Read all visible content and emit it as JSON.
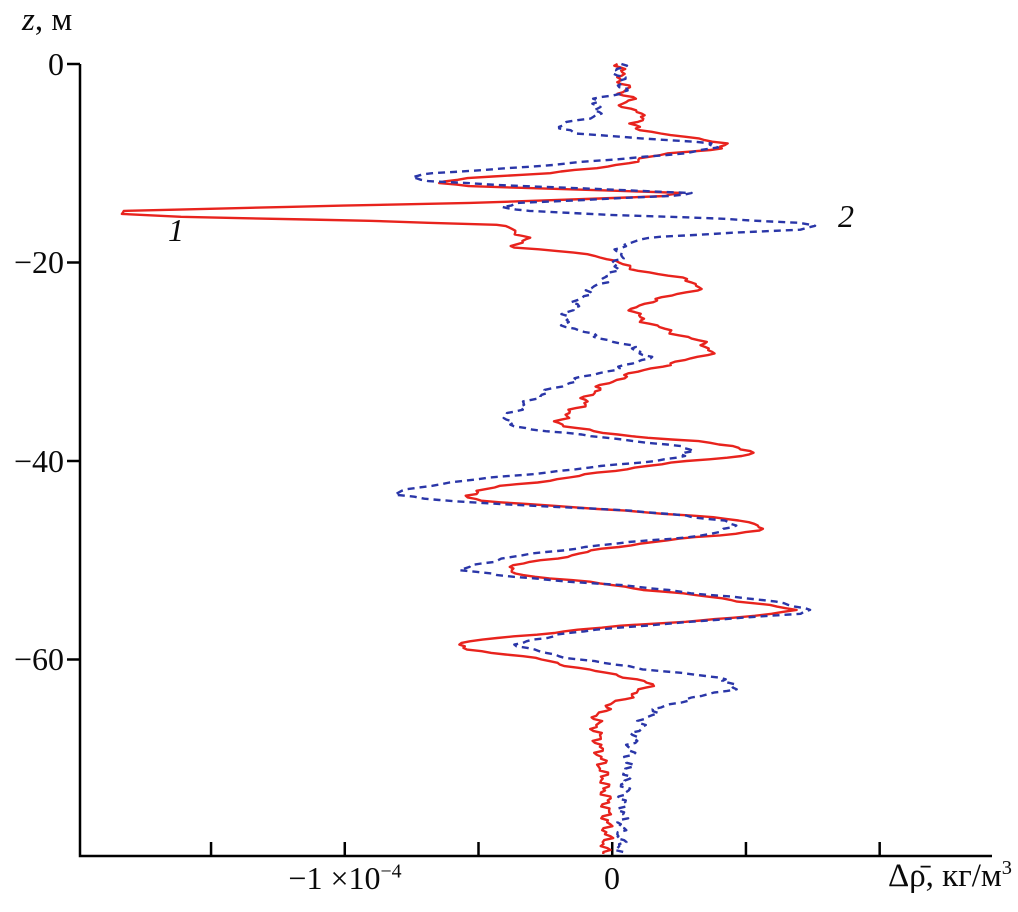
{
  "figure": {
    "z_axis": {
      "symbol": "z",
      "unit_suffix": ", м"
    },
    "x_axis": {
      "label_base": "Δρ̄, кг/м",
      "label_exp": "3"
    },
    "x_tick_neg": {
      "base": "−1 ×10",
      "exp": "−4"
    },
    "x_tick_zero": "0"
  },
  "chart_data": {
    "type": "line",
    "title": "",
    "xlabel": "Δρ̄, кг/м³",
    "ylabel": "z, м",
    "values_unit": "×10⁻⁴ кг/м³",
    "x_scale": 0.0001,
    "xlim_e4": [
      -1.99,
      1.42
    ],
    "ylim": [
      -79.8,
      0
    ],
    "x_ticks_e4": [
      -1.5,
      -1,
      -0.5,
      0,
      0.5,
      1
    ],
    "x_labeled_ticks": [
      {
        "value_e4": -1,
        "label": "−1 ×10⁻⁴"
      },
      {
        "value_e4": 0,
        "label": "0"
      }
    ],
    "y_ticks": [
      0,
      -20,
      -40,
      -60
    ],
    "y_tick_labels": [
      "0",
      "−20",
      "−40",
      "−60"
    ],
    "grid": false,
    "legend_position": "inline-annotations",
    "series": [
      {
        "name": "1",
        "color": "#e8231d",
        "style": "solid",
        "points": [
          [
            0,
            0.02
          ],
          [
            -0.5,
            0.05
          ],
          [
            -1,
            0.02
          ],
          [
            -1.5,
            0.04
          ],
          [
            -2,
            0.03
          ],
          [
            -2.5,
            0.06
          ],
          [
            -3,
            0.04
          ],
          [
            -3.5,
            0.07
          ],
          [
            -4,
            0.04
          ],
          [
            -4.5,
            0.06
          ],
          [
            -5,
            0.1
          ],
          [
            -5.5,
            0.14
          ],
          [
            -6,
            0.06
          ],
          [
            -6.5,
            0.1
          ],
          [
            -7,
            0.18
          ],
          [
            -7.5,
            0.3
          ],
          [
            -8,
            0.44
          ],
          [
            -8.5,
            0.4
          ],
          [
            -9,
            0.22
          ],
          [
            -9.5,
            0.12
          ],
          [
            -10,
            0.05
          ],
          [
            -10.5,
            -0.05
          ],
          [
            -11,
            -0.25
          ],
          [
            -11.5,
            -0.55
          ],
          [
            -12,
            -0.63
          ],
          [
            -12.3,
            -0.55
          ],
          [
            -12.6,
            -0.2
          ],
          [
            -13,
            0.28
          ],
          [
            -13.3,
            0.2
          ],
          [
            -13.6,
            -0.1
          ],
          [
            -14,
            -0.55
          ],
          [
            -14.4,
            -1.2
          ],
          [
            -14.8,
            -1.82
          ],
          [
            -15.1,
            -1.86
          ],
          [
            -15.4,
            -1.6
          ],
          [
            -15.8,
            -0.9
          ],
          [
            -16.2,
            -0.45
          ],
          [
            -16.6,
            -0.37
          ],
          [
            -17,
            -0.35
          ],
          [
            -17.5,
            -0.33
          ],
          [
            -18,
            -0.34
          ],
          [
            -18.5,
            -0.36
          ],
          [
            -19,
            -0.15
          ],
          [
            -19.5,
            -0.02
          ],
          [
            -20,
            0.02
          ],
          [
            -20.5,
            0.06
          ],
          [
            -21,
            0.14
          ],
          [
            -21.5,
            0.24
          ],
          [
            -22,
            0.31
          ],
          [
            -22.5,
            0.33
          ],
          [
            -23,
            0.28
          ],
          [
            -23.5,
            0.2
          ],
          [
            -24,
            0.13
          ],
          [
            -24.5,
            0.09
          ],
          [
            -25,
            0.08
          ],
          [
            -25.5,
            0.1
          ],
          [
            -26,
            0.13
          ],
          [
            -26.5,
            0.17
          ],
          [
            -27,
            0.22
          ],
          [
            -27.5,
            0.28
          ],
          [
            -28,
            0.33
          ],
          [
            -28.5,
            0.36
          ],
          [
            -29,
            0.37
          ],
          [
            -29.5,
            0.33
          ],
          [
            -30,
            0.25
          ],
          [
            -30.5,
            0.17
          ],
          [
            -31,
            0.1
          ],
          [
            -31.5,
            0.04
          ],
          [
            -32,
            0
          ],
          [
            -32.5,
            -0.04
          ],
          [
            -33,
            -0.07
          ],
          [
            -33.5,
            -0.09
          ],
          [
            -34,
            -0.1
          ],
          [
            -34.5,
            -0.12
          ],
          [
            -35,
            -0.15
          ],
          [
            -35.5,
            -0.18
          ],
          [
            -36,
            -0.2
          ],
          [
            -36.5,
            -0.17
          ],
          [
            -37,
            -0.08
          ],
          [
            -37.5,
            0.08
          ],
          [
            -38,
            0.3
          ],
          [
            -38.5,
            0.45
          ],
          [
            -39,
            0.53
          ],
          [
            -39.5,
            0.48
          ],
          [
            -40,
            0.3
          ],
          [
            -40.5,
            0.12
          ],
          [
            -41,
            0
          ],
          [
            -41.5,
            -0.12
          ],
          [
            -42,
            -0.25
          ],
          [
            -42.5,
            -0.4
          ],
          [
            -43,
            -0.5
          ],
          [
            -43.5,
            -0.55
          ],
          [
            -44,
            -0.48
          ],
          [
            -44.5,
            -0.25
          ],
          [
            -45,
            0.05
          ],
          [
            -45.5,
            0.3
          ],
          [
            -46,
            0.47
          ],
          [
            -46.5,
            0.57
          ],
          [
            -47,
            0.54
          ],
          [
            -47.5,
            0.4
          ],
          [
            -48,
            0.2
          ],
          [
            -48.5,
            0.05
          ],
          [
            -49,
            -0.06
          ],
          [
            -49.5,
            -0.15
          ],
          [
            -50,
            -0.26
          ],
          [
            -50.5,
            -0.36
          ],
          [
            -51,
            -0.4
          ],
          [
            -51.5,
            -0.33
          ],
          [
            -52,
            -0.16
          ],
          [
            -52.5,
            0
          ],
          [
            -53,
            0.14
          ],
          [
            -53.5,
            0.3
          ],
          [
            -54,
            0.45
          ],
          [
            -54.5,
            0.58
          ],
          [
            -55,
            0.67
          ],
          [
            -55.4,
            0.62
          ],
          [
            -55.8,
            0.45
          ],
          [
            -56.2,
            0.25
          ],
          [
            -56.6,
            0.05
          ],
          [
            -57,
            -0.12
          ],
          [
            -57.5,
            -0.3
          ],
          [
            -58,
            -0.48
          ],
          [
            -58.5,
            -0.59
          ],
          [
            -59,
            -0.54
          ],
          [
            -59.5,
            -0.38
          ],
          [
            -60,
            -0.27
          ],
          [
            -60.5,
            -0.18
          ],
          [
            -61,
            -0.1
          ],
          [
            -61.5,
            0
          ],
          [
            -62,
            0.1
          ],
          [
            -62.5,
            0.14
          ],
          [
            -63,
            0.12
          ],
          [
            -63.5,
            0.08
          ],
          [
            -64,
            0.04
          ],
          [
            -64.5,
            0
          ],
          [
            -65,
            -0.03
          ],
          [
            -65.5,
            -0.05
          ],
          [
            -66,
            -0.06
          ],
          [
            -67,
            -0.06
          ],
          [
            -68,
            -0.05
          ],
          [
            -69,
            -0.05
          ],
          [
            -70,
            -0.04
          ],
          [
            -71,
            -0.04
          ],
          [
            -72,
            -0.03
          ],
          [
            -73,
            -0.03
          ],
          [
            -74,
            -0.02
          ],
          [
            -75,
            -0.02
          ],
          [
            -76,
            -0.02
          ],
          [
            -77,
            -0.02
          ],
          [
            -78,
            -0.02
          ],
          [
            -79,
            -0.03
          ],
          [
            -79.6,
            -0.03
          ]
        ]
      },
      {
        "name": "2",
        "color": "#2a36a8",
        "style": "dashed",
        "points": [
          [
            0,
            0.03
          ],
          [
            -0.5,
            0.03
          ],
          [
            -1,
            0.02
          ],
          [
            -1.5,
            0.03
          ],
          [
            -2,
            0.04
          ],
          [
            -2.5,
            0.04
          ],
          [
            -3,
            0.03
          ],
          [
            -3.5,
            -0.05
          ],
          [
            -4,
            -0.08
          ],
          [
            -4.5,
            -0.04
          ],
          [
            -5,
            -0.05
          ],
          [
            -5.5,
            -0.1
          ],
          [
            -6,
            -0.17
          ],
          [
            -6.5,
            -0.21
          ],
          [
            -7,
            -0.12
          ],
          [
            -7.5,
            0.12
          ],
          [
            -8,
            0.36
          ],
          [
            -8.4,
            0.4
          ],
          [
            -8.8,
            0.32
          ],
          [
            -9.2,
            0.18
          ],
          [
            -9.6,
            0.02
          ],
          [
            -10,
            -0.15
          ],
          [
            -10.5,
            -0.4
          ],
          [
            -11,
            -0.65
          ],
          [
            -11.4,
            -0.76
          ],
          [
            -11.8,
            -0.7
          ],
          [
            -12.2,
            -0.4
          ],
          [
            -12.6,
            -0.05
          ],
          [
            -13,
            0.28
          ],
          [
            -13.3,
            0.22
          ],
          [
            -13.7,
            -0.1
          ],
          [
            -14,
            -0.35
          ],
          [
            -14.4,
            -0.43
          ],
          [
            -14.8,
            -0.3
          ],
          [
            -15.2,
            0
          ],
          [
            -15.6,
            0.4
          ],
          [
            -16,
            0.7
          ],
          [
            -16.3,
            0.78
          ],
          [
            -16.7,
            0.68
          ],
          [
            -17,
            0.45
          ],
          [
            -17.4,
            0.2
          ],
          [
            -17.8,
            0.08
          ],
          [
            -18.2,
            0.04
          ],
          [
            -19,
            0.03
          ],
          [
            -20,
            0.02
          ],
          [
            -21,
            0
          ],
          [
            -22,
            -0.04
          ],
          [
            -23,
            -0.09
          ],
          [
            -24,
            -0.13
          ],
          [
            -25,
            -0.16
          ],
          [
            -26,
            -0.18
          ],
          [
            -26.5,
            -0.16
          ],
          [
            -27,
            -0.11
          ],
          [
            -27.5,
            -0.05
          ],
          [
            -28,
            0.01
          ],
          [
            -28.5,
            0.07
          ],
          [
            -29,
            0.11
          ],
          [
            -29.5,
            0.13
          ],
          [
            -30,
            0.1
          ],
          [
            -30.5,
            0.04
          ],
          [
            -31,
            -0.03
          ],
          [
            -31.5,
            -0.1
          ],
          [
            -32,
            -0.15
          ],
          [
            -32.5,
            -0.2
          ],
          [
            -33,
            -0.24
          ],
          [
            -33.5,
            -0.28
          ],
          [
            -34,
            -0.31
          ],
          [
            -34.5,
            -0.34
          ],
          [
            -35,
            -0.37
          ],
          [
            -35.5,
            -0.39
          ],
          [
            -36,
            -0.4
          ],
          [
            -36.5,
            -0.36
          ],
          [
            -37,
            -0.24
          ],
          [
            -37.5,
            -0.08
          ],
          [
            -38,
            0.1
          ],
          [
            -38.5,
            0.24
          ],
          [
            -39,
            0.3
          ],
          [
            -39.5,
            0.27
          ],
          [
            -40,
            0.15
          ],
          [
            -40.5,
            -0.02
          ],
          [
            -41,
            -0.2
          ],
          [
            -41.5,
            -0.38
          ],
          [
            -42,
            -0.55
          ],
          [
            -42.5,
            -0.7
          ],
          [
            -43,
            -0.78
          ],
          [
            -43.4,
            -0.8
          ],
          [
            -43.8,
            -0.72
          ],
          [
            -44.2,
            -0.5
          ],
          [
            -44.6,
            -0.22
          ],
          [
            -45,
            0.05
          ],
          [
            -45.5,
            0.28
          ],
          [
            -46,
            0.41
          ],
          [
            -46.5,
            0.45
          ],
          [
            -47,
            0.43
          ],
          [
            -47.5,
            0.33
          ],
          [
            -48,
            0.15
          ],
          [
            -48.5,
            -0.05
          ],
          [
            -49,
            -0.2
          ],
          [
            -49.5,
            -0.33
          ],
          [
            -50,
            -0.44
          ],
          [
            -50.5,
            -0.52
          ],
          [
            -51,
            -0.55
          ],
          [
            -51.5,
            -0.44
          ],
          [
            -52,
            -0.22
          ],
          [
            -52.5,
            0.02
          ],
          [
            -53,
            0.2
          ],
          [
            -53.5,
            0.38
          ],
          [
            -54,
            0.55
          ],
          [
            -54.5,
            0.68
          ],
          [
            -55,
            0.74
          ],
          [
            -55.4,
            0.68
          ],
          [
            -55.8,
            0.5
          ],
          [
            -56.2,
            0.3
          ],
          [
            -56.6,
            0.1
          ],
          [
            -57,
            -0.05
          ],
          [
            -57.5,
            -0.2
          ],
          [
            -58,
            -0.3
          ],
          [
            -58.5,
            -0.35
          ],
          [
            -59,
            -0.31
          ],
          [
            -59.5,
            -0.22
          ],
          [
            -60,
            -0.12
          ],
          [
            -60.5,
            0
          ],
          [
            -61,
            0.14
          ],
          [
            -61.5,
            0.3
          ],
          [
            -62,
            0.42
          ],
          [
            -62.5,
            0.46
          ],
          [
            -63,
            0.44
          ],
          [
            -63.5,
            0.37
          ],
          [
            -64,
            0.28
          ],
          [
            -64.5,
            0.22
          ],
          [
            -65,
            0.17
          ],
          [
            -66,
            0.12
          ],
          [
            -67,
            0.1
          ],
          [
            -68,
            0.08
          ],
          [
            -69,
            0.07
          ],
          [
            -70,
            0.06
          ],
          [
            -71,
            0.06
          ],
          [
            -72,
            0.05
          ],
          [
            -73,
            0.05
          ],
          [
            -74,
            0.04
          ],
          [
            -75,
            0.04
          ],
          [
            -76,
            0.04
          ],
          [
            -77,
            0.03
          ],
          [
            -78,
            0.03
          ],
          [
            -79,
            0.03
          ],
          [
            -79.6,
            0.03
          ]
        ]
      }
    ]
  }
}
